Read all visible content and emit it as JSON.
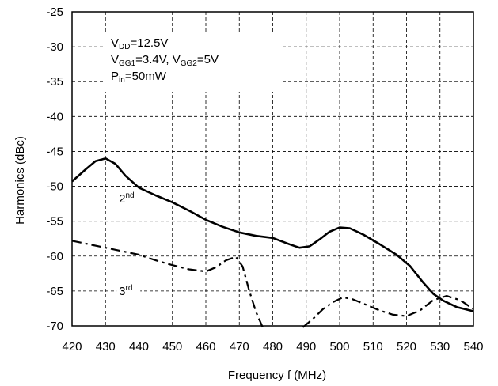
{
  "chart_data": {
    "type": "line",
    "xlabel": "Frequency f (MHz)",
    "ylabel": "Harmonics (dBc)",
    "xlim": [
      420,
      540
    ],
    "ylim": [
      -70,
      -25
    ],
    "x_ticks": [
      "420",
      "430",
      "440",
      "450",
      "460",
      "470",
      "480",
      "490",
      "500",
      "510",
      "520",
      "530",
      "540"
    ],
    "y_ticks": [
      "-25",
      "-30",
      "-35",
      "-40",
      "-45",
      "-50",
      "-55",
      "-60",
      "-65",
      "-70"
    ],
    "grid": "dashed",
    "conditions": {
      "vdd": {
        "main": "V",
        "sub": "DD",
        "rest": "=12.5V"
      },
      "vgg": {
        "main1": "V",
        "sub1": "GG1",
        "mid": "=3.4V,  V",
        "sub2": "GG2",
        "rest": "=5V"
      },
      "pin": {
        "main": "P",
        "sub": "in",
        "rest": "=50mW"
      }
    },
    "series": [
      {
        "name": "2nd",
        "label_base": "2",
        "label_sup": "nd",
        "label_at": [
          434,
          -52.3
        ],
        "style": "solid",
        "color": "#000000",
        "points": [
          [
            420,
            -49.3
          ],
          [
            424,
            -47.6
          ],
          [
            427,
            -46.4
          ],
          [
            430,
            -46.0
          ],
          [
            433,
            -46.8
          ],
          [
            436,
            -48.5
          ],
          [
            440,
            -50.2
          ],
          [
            445,
            -51.3
          ],
          [
            450,
            -52.3
          ],
          [
            455,
            -53.5
          ],
          [
            460,
            -54.8
          ],
          [
            465,
            -55.8
          ],
          [
            470,
            -56.6
          ],
          [
            475,
            -57.1
          ],
          [
            480,
            -57.4
          ],
          [
            485,
            -58.3
          ],
          [
            488,
            -58.8
          ],
          [
            491,
            -58.6
          ],
          [
            494,
            -57.6
          ],
          [
            497,
            -56.5
          ],
          [
            500,
            -55.9
          ],
          [
            503,
            -56.0
          ],
          [
            507,
            -56.9
          ],
          [
            512,
            -58.3
          ],
          [
            517,
            -59.8
          ],
          [
            521,
            -61.4
          ],
          [
            525,
            -63.8
          ],
          [
            528,
            -65.4
          ],
          [
            531,
            -66.4
          ],
          [
            535,
            -67.3
          ],
          [
            540,
            -67.9
          ]
        ]
      },
      {
        "name": "3rd",
        "label_base": "3",
        "label_sup": "rd",
        "label_at": [
          434,
          -65.6
        ],
        "style": "dash-dot",
        "color": "#000000",
        "points": [
          [
            420,
            -57.8
          ],
          [
            425,
            -58.3
          ],
          [
            430,
            -58.8
          ],
          [
            435,
            -59.3
          ],
          [
            440,
            -59.8
          ],
          [
            445,
            -60.6
          ],
          [
            450,
            -61.3
          ],
          [
            455,
            -61.9
          ],
          [
            460,
            -62.2
          ],
          [
            463,
            -61.6
          ],
          [
            466,
            -60.6
          ],
          [
            469,
            -60.1
          ],
          [
            471,
            -61.5
          ],
          [
            473,
            -65.0
          ],
          [
            475,
            -68.0
          ],
          [
            477,
            -70.2
          ]
        ]
      },
      {
        "name": "3rd-cont",
        "style": "dash-dot",
        "color": "#000000",
        "points": [
          [
            489,
            -70.2
          ],
          [
            492,
            -69.0
          ],
          [
            495,
            -67.6
          ],
          [
            498,
            -66.6
          ],
          [
            501,
            -65.9
          ],
          [
            504,
            -66.2
          ],
          [
            508,
            -67.0
          ],
          [
            512,
            -67.8
          ],
          [
            516,
            -68.4
          ],
          [
            520,
            -68.6
          ],
          [
            524,
            -67.8
          ],
          [
            528,
            -66.3
          ],
          [
            532,
            -65.7
          ],
          [
            536,
            -66.3
          ],
          [
            540,
            -67.6
          ]
        ]
      }
    ]
  }
}
